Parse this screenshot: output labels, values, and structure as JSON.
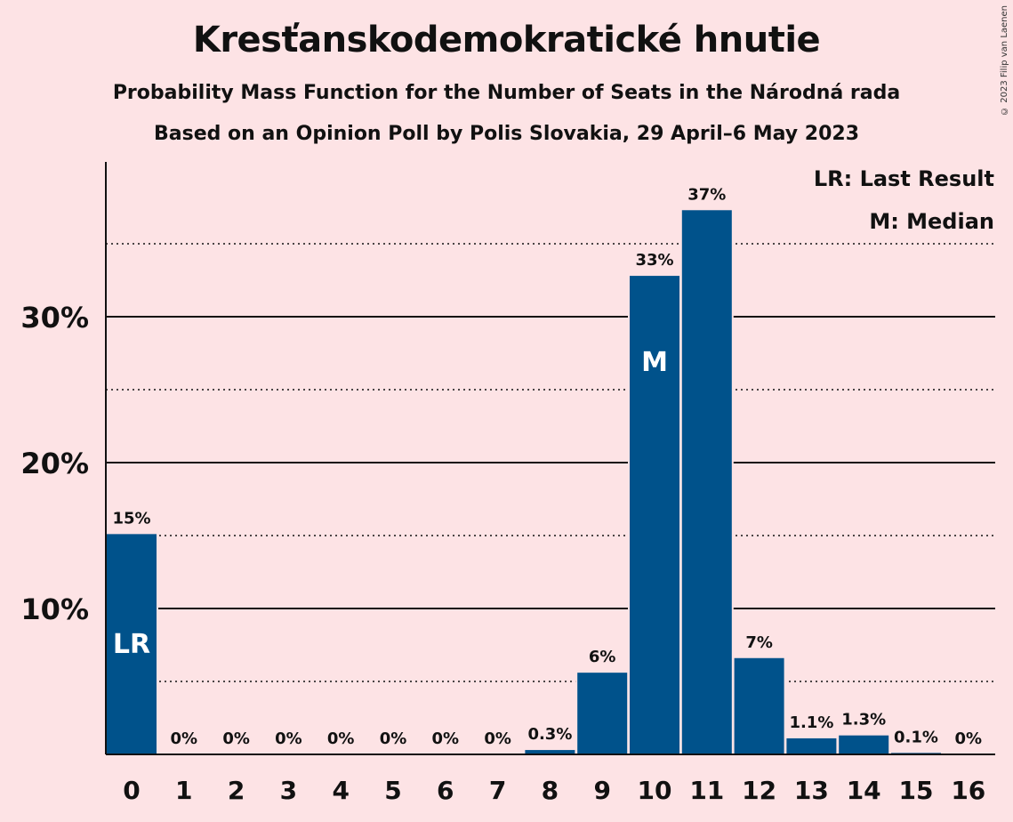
{
  "title": "Kresťanskodemokratické hnutie",
  "subtitle1": "Probability Mass Function for the Number of Seats in the Národná rada",
  "subtitle2": "Based on an Opinion Poll by Polis Slovakia, 29 April–6 May 2023",
  "copyright": "© 2023 Filip van Laenen",
  "legend": {
    "last_result": "LR: Last Result",
    "median": "M: Median"
  },
  "colors": {
    "bar": "#00528b",
    "background": "#fde3e5"
  },
  "chart_data": {
    "type": "bar",
    "categories": [
      "0",
      "1",
      "2",
      "3",
      "4",
      "5",
      "6",
      "7",
      "8",
      "9",
      "10",
      "11",
      "12",
      "13",
      "14",
      "15",
      "16"
    ],
    "values": [
      15.1,
      0,
      0,
      0,
      0,
      0,
      0,
      0,
      0.3,
      5.6,
      32.8,
      37.3,
      6.6,
      1.1,
      1.3,
      0.1,
      0
    ],
    "data_labels": [
      "15%",
      "0%",
      "0%",
      "0%",
      "0%",
      "0%",
      "0%",
      "0%",
      "0.3%",
      "6%",
      "33%",
      "37%",
      "7%",
      "1.1%",
      "1.3%",
      "0.1%",
      "0%"
    ],
    "y_ticks": [
      10,
      20,
      30
    ],
    "y_tick_labels": [
      "10%",
      "20%",
      "30%"
    ],
    "ylim": [
      0,
      40
    ],
    "grid": "solid at 10%, dotted at 5%",
    "markers": [
      {
        "category": "0",
        "label": "LR"
      },
      {
        "category": "10",
        "label": "M"
      }
    ],
    "legend_position": "top-right"
  }
}
